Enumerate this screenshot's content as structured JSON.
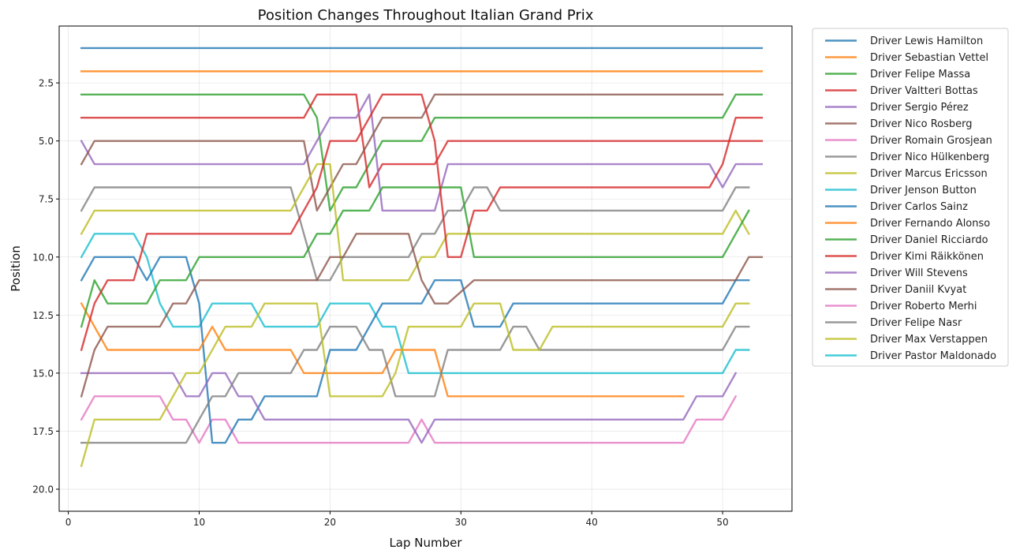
{
  "chart_data": {
    "type": "line",
    "title": "Position Changes Throughout Italian Grand Prix",
    "xlabel": "Lap Number",
    "ylabel": "Position",
    "xlim": [
      -0.7,
      55.3
    ],
    "ylim": [
      20.95,
      0.05
    ],
    "y_inverted": true,
    "x_ticks": [
      0,
      10,
      20,
      30,
      40,
      50
    ],
    "y_ticks": [
      2.5,
      5.0,
      7.5,
      10.0,
      12.5,
      15.0,
      17.5,
      20.0
    ],
    "y_tick_labels": [
      "2.5",
      "5.0",
      "7.5",
      "10.0",
      "12.5",
      "15.0",
      "17.5",
      "20.0"
    ],
    "grid": true,
    "legend_position": "outside-right",
    "series": [
      {
        "name": "Driver Lewis Hamilton",
        "color": "#1f77b4",
        "segments": [
          [
            1,
            1
          ],
          [
            53,
            1
          ]
        ]
      },
      {
        "name": "Driver Sebastian Vettel",
        "color": "#ff7f0e",
        "segments": [
          [
            1,
            2
          ],
          [
            53,
            2
          ]
        ]
      },
      {
        "name": "Driver Felipe Massa",
        "color": "#2ca02c",
        "segments": [
          [
            1,
            3
          ],
          [
            18,
            3
          ],
          [
            19,
            4
          ],
          [
            20,
            8
          ],
          [
            21,
            7
          ],
          [
            22,
            7
          ],
          [
            24,
            5
          ],
          [
            27,
            5
          ],
          [
            28,
            4
          ],
          [
            50,
            4
          ],
          [
            51,
            3
          ],
          [
            53,
            3
          ]
        ]
      },
      {
        "name": "Driver Valtteri Bottas",
        "color": "#d62728",
        "segments": [
          [
            1,
            4
          ],
          [
            18,
            4
          ],
          [
            19,
            3
          ],
          [
            22,
            3
          ],
          [
            23,
            7
          ],
          [
            24,
            6
          ],
          [
            28,
            6
          ],
          [
            29,
            5
          ],
          [
            53,
            5
          ]
        ]
      },
      {
        "name": "Driver Sergio Pérez",
        "color": "#9467bd",
        "segments": [
          [
            1,
            5
          ],
          [
            2,
            6
          ],
          [
            18,
            6
          ],
          [
            20,
            4
          ],
          [
            22,
            4
          ],
          [
            23,
            3
          ],
          [
            24,
            8
          ],
          [
            28,
            8
          ],
          [
            29,
            6
          ],
          [
            49,
            6
          ],
          [
            50,
            7
          ],
          [
            51,
            6
          ],
          [
            53,
            6
          ]
        ]
      },
      {
        "name": "Driver Nico Rosberg",
        "color": "#8c564b",
        "segments": [
          [
            1,
            6
          ],
          [
            2,
            5
          ],
          [
            18,
            5
          ],
          [
            19,
            8
          ],
          [
            20,
            7
          ],
          [
            21,
            6
          ],
          [
            22,
            6
          ],
          [
            24,
            4
          ],
          [
            27,
            4
          ],
          [
            28,
            3
          ],
          [
            50,
            3
          ]
        ]
      },
      {
        "name": "Driver Romain Grosjean",
        "color": "#e377c2",
        "segments": [
          [
            1,
            17
          ],
          [
            2,
            16
          ],
          [
            7,
            16
          ],
          [
            8,
            17
          ],
          [
            9,
            17
          ],
          [
            10,
            18
          ],
          [
            11,
            17
          ],
          [
            12,
            17
          ],
          [
            13,
            18
          ],
          [
            26,
            18
          ],
          [
            27,
            17
          ],
          [
            28,
            18
          ],
          [
            47,
            18
          ],
          [
            48,
            17
          ],
          [
            50,
            17
          ],
          [
            51,
            16
          ]
        ]
      },
      {
        "name": "Driver Nico Hülkenberg",
        "color": "#7f7f7f",
        "segments": [
          [
            1,
            8
          ],
          [
            2,
            7
          ],
          [
            17,
            7
          ],
          [
            19,
            11
          ],
          [
            20,
            11
          ],
          [
            21,
            10
          ],
          [
            26,
            10
          ],
          [
            27,
            9
          ],
          [
            28,
            9
          ],
          [
            29,
            8
          ],
          [
            30,
            8
          ],
          [
            31,
            7
          ],
          [
            32,
            7
          ],
          [
            33,
            8
          ],
          [
            50,
            8
          ],
          [
            51,
            7
          ],
          [
            52,
            7
          ]
        ]
      },
      {
        "name": "Driver Marcus Ericsson",
        "color": "#bcbd22",
        "segments": [
          [
            1,
            9
          ],
          [
            2,
            8
          ],
          [
            17,
            8
          ],
          [
            19,
            6
          ],
          [
            20,
            6
          ],
          [
            21,
            11
          ],
          [
            26,
            11
          ],
          [
            27,
            10
          ],
          [
            28,
            10
          ],
          [
            29,
            9
          ],
          [
            50,
            9
          ],
          [
            51,
            8
          ],
          [
            52,
            9
          ]
        ]
      },
      {
        "name": "Driver Jenson Button",
        "color": "#17becf",
        "segments": [
          [
            1,
            10
          ],
          [
            2,
            9
          ],
          [
            5,
            9
          ],
          [
            6,
            10
          ],
          [
            7,
            12
          ],
          [
            8,
            13
          ],
          [
            10,
            13
          ],
          [
            11,
            12
          ],
          [
            13,
            12
          ],
          [
            14,
            12
          ],
          [
            15,
            13
          ],
          [
            19,
            13
          ],
          [
            20,
            12
          ],
          [
            23,
            12
          ],
          [
            24,
            13
          ],
          [
            25,
            13
          ],
          [
            26,
            15
          ],
          [
            50,
            15
          ],
          [
            51,
            14
          ],
          [
            52,
            14
          ]
        ]
      },
      {
        "name": "Driver Carlos Sainz",
        "color": "#1f77b4",
        "segments": [
          [
            1,
            11
          ],
          [
            2,
            10
          ],
          [
            5,
            10
          ],
          [
            6,
            11
          ],
          [
            7,
            10
          ],
          [
            9,
            10
          ],
          [
            10,
            12
          ],
          [
            11,
            18
          ],
          [
            12,
            18
          ],
          [
            13,
            17
          ],
          [
            14,
            17
          ],
          [
            15,
            16
          ],
          [
            19,
            16
          ],
          [
            20,
            14
          ],
          [
            22,
            14
          ],
          [
            24,
            12
          ],
          [
            27,
            12
          ],
          [
            28,
            11
          ],
          [
            30,
            11
          ],
          [
            31,
            13
          ],
          [
            33,
            13
          ],
          [
            34,
            12
          ],
          [
            50,
            12
          ],
          [
            51,
            11
          ],
          [
            52,
            11
          ]
        ]
      },
      {
        "name": "Driver Fernando Alonso",
        "color": "#ff7f0e",
        "segments": [
          [
            1,
            12
          ],
          [
            3,
            14
          ],
          [
            10,
            14
          ],
          [
            11,
            13
          ],
          [
            12,
            14
          ],
          [
            17,
            14
          ],
          [
            18,
            15
          ],
          [
            24,
            15
          ],
          [
            25,
            14
          ],
          [
            28,
            14
          ],
          [
            29,
            16
          ],
          [
            47,
            16
          ]
        ]
      },
      {
        "name": "Driver Daniel Ricciardo",
        "color": "#2ca02c",
        "segments": [
          [
            1,
            13
          ],
          [
            2,
            11
          ],
          [
            3,
            12
          ],
          [
            6,
            12
          ],
          [
            7,
            11
          ],
          [
            9,
            11
          ],
          [
            10,
            10
          ],
          [
            18,
            10
          ],
          [
            19,
            9
          ],
          [
            20,
            9
          ],
          [
            21,
            8
          ],
          [
            23,
            8
          ],
          [
            24,
            7
          ],
          [
            30,
            7
          ],
          [
            31,
            10
          ],
          [
            50,
            10
          ],
          [
            52,
            8
          ]
        ]
      },
      {
        "name": "Driver Kimi Räikkönen",
        "color": "#d62728",
        "segments": [
          [
            1,
            14
          ],
          [
            2,
            12
          ],
          [
            3,
            11
          ],
          [
            5,
            11
          ],
          [
            6,
            9
          ],
          [
            17,
            9
          ],
          [
            19,
            7
          ],
          [
            20,
            5
          ],
          [
            22,
            5
          ],
          [
            24,
            3
          ],
          [
            27,
            3
          ],
          [
            28,
            5
          ],
          [
            29,
            10
          ],
          [
            30,
            10
          ],
          [
            31,
            8
          ],
          [
            32,
            8
          ],
          [
            33,
            7
          ],
          [
            49,
            7
          ],
          [
            50,
            6
          ],
          [
            51,
            4
          ],
          [
            53,
            4
          ]
        ]
      },
      {
        "name": "Driver Will Stevens",
        "color": "#9467bd",
        "segments": [
          [
            1,
            15
          ],
          [
            8,
            15
          ],
          [
            9,
            16
          ],
          [
            10,
            16
          ],
          [
            11,
            15
          ],
          [
            12,
            15
          ],
          [
            13,
            16
          ],
          [
            14,
            16
          ],
          [
            15,
            17
          ],
          [
            26,
            17
          ],
          [
            27,
            18
          ],
          [
            28,
            17
          ],
          [
            47,
            17
          ],
          [
            48,
            16
          ],
          [
            50,
            16
          ],
          [
            51,
            15
          ]
        ]
      },
      {
        "name": "Driver Daniil Kvyat",
        "color": "#8c564b",
        "segments": [
          [
            1,
            16
          ],
          [
            2,
            14
          ],
          [
            3,
            13
          ],
          [
            7,
            13
          ],
          [
            8,
            12
          ],
          [
            9,
            12
          ],
          [
            10,
            11
          ],
          [
            19,
            11
          ],
          [
            20,
            10
          ],
          [
            21,
            10
          ],
          [
            22,
            9
          ],
          [
            26,
            9
          ],
          [
            27,
            11
          ],
          [
            28,
            12
          ],
          [
            29,
            12
          ],
          [
            31,
            11
          ],
          [
            51,
            11
          ],
          [
            52,
            10
          ],
          [
            53,
            10
          ]
        ]
      },
      {
        "name": "Driver Roberto Merhi",
        "color": "#e377c2",
        "segments": []
      },
      {
        "name": "Driver Felipe Nasr",
        "color": "#7f7f7f",
        "segments": [
          [
            1,
            18
          ],
          [
            9,
            18
          ],
          [
            11,
            16
          ],
          [
            12,
            16
          ],
          [
            13,
            15
          ],
          [
            17,
            15
          ],
          [
            18,
            14
          ],
          [
            19,
            14
          ],
          [
            20,
            13
          ],
          [
            22,
            13
          ],
          [
            23,
            14
          ],
          [
            24,
            14
          ],
          [
            25,
            16
          ],
          [
            28,
            16
          ],
          [
            29,
            14
          ],
          [
            33,
            14
          ],
          [
            34,
            13
          ],
          [
            35,
            13
          ],
          [
            36,
            14
          ],
          [
            50,
            14
          ],
          [
            51,
            13
          ],
          [
            52,
            13
          ]
        ]
      },
      {
        "name": "Driver Max Verstappen",
        "color": "#bcbd22",
        "segments": [
          [
            1,
            19
          ],
          [
            2,
            17
          ],
          [
            7,
            17
          ],
          [
            9,
            15
          ],
          [
            10,
            15
          ],
          [
            12,
            13
          ],
          [
            14,
            13
          ],
          [
            15,
            12
          ],
          [
            19,
            12
          ],
          [
            20,
            16
          ],
          [
            24,
            16
          ],
          [
            25,
            15
          ],
          [
            26,
            13
          ],
          [
            30,
            13
          ],
          [
            31,
            12
          ],
          [
            33,
            12
          ],
          [
            34,
            14
          ],
          [
            36,
            14
          ],
          [
            37,
            13
          ],
          [
            50,
            13
          ],
          [
            51,
            12
          ],
          [
            52,
            12
          ]
        ]
      },
      {
        "name": "Driver Pastor Maldonado",
        "color": "#17becf",
        "segments": []
      }
    ]
  }
}
